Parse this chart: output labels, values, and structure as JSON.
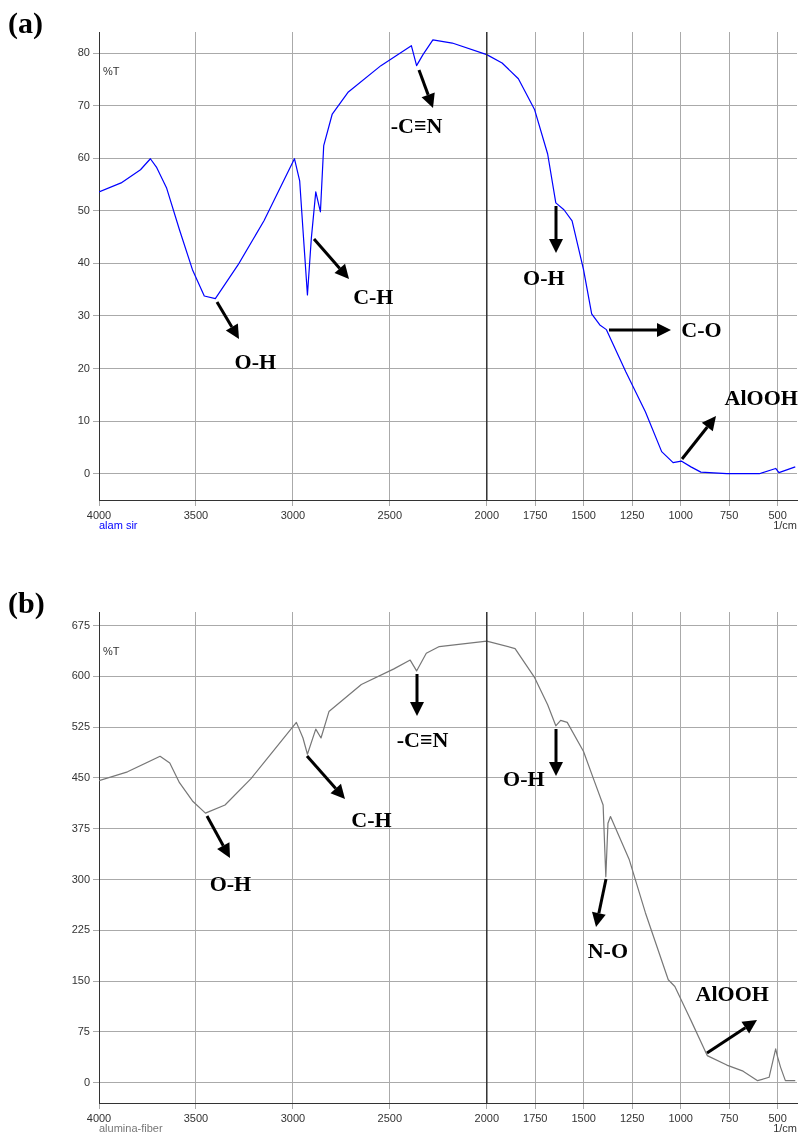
{
  "chart_data": [
    {
      "type": "line",
      "title": "(a)",
      "ylabel": "%T",
      "xlabel": "1/cm",
      "xlim": [
        4000,
        400
      ],
      "xticks": [
        4000,
        3500,
        3000,
        2500,
        2000,
        1750,
        1500,
        1250,
        1000,
        750,
        500
      ],
      "ylim": [
        -5,
        84
      ],
      "yticks": [
        0,
        10,
        20,
        30,
        40,
        50,
        60,
        70,
        80
      ],
      "grid": true,
      "ref_lines": [
        {
          "axis": "x",
          "value": 2000,
          "color": "#333333"
        }
      ],
      "series": [
        {
          "color": "#0000ff",
          "x": [
            4000,
            3886,
            3786,
            3735,
            3702,
            3652,
            3585,
            3518,
            3457,
            3400,
            3283,
            3149,
            2992,
            2965,
            2948,
            2925,
            2905,
            2882,
            2858,
            2841,
            2797,
            2714,
            2546,
            2389,
            2362,
            2329,
            2278,
            2178,
            2000,
            1921,
            1837,
            1753,
            1686,
            1644,
            1602,
            1560,
            1501,
            1459,
            1417,
            1383,
            1283,
            1182,
            1098,
            1039,
            997,
            947,
            896,
            762,
            594,
            510,
            493,
            409
          ],
          "values": [
            53.6,
            55.3,
            57.8,
            59.9,
            58.2,
            54.4,
            46.4,
            38.8,
            33.8,
            33.3,
            39.7,
            48.1,
            59.9,
            55.7,
            46.4,
            34.0,
            44.7,
            53.6,
            49.8,
            62.4,
            68.4,
            72.6,
            77.6,
            81.4,
            77.6,
            79.7,
            82.5,
            81.9,
            79.7,
            78.1,
            75.1,
            69.2,
            60.8,
            51.5,
            50.2,
            48.1,
            38.8,
            30.4,
            28.3,
            27.4,
            19.4,
            11.8,
            4.2,
            2.1,
            2.4,
            1.3,
            0.3,
            0,
            0,
            1.0,
            0.2,
            1.3
          ]
        }
      ],
      "annotations": [
        "alam sir",
        {
          "text": "O-H",
          "x": 3400,
          "y": 33.3
        },
        {
          "text": "C-H",
          "x": 2905,
          "y": 44.7
        },
        {
          "text": "-C≡N",
          "x": 2362,
          "y": 77.6
        },
        {
          "text": "O-H",
          "x": 1644,
          "y": 51.5
        },
        {
          "text": "C-O",
          "x": 1383,
          "y": 27.4
        },
        {
          "text": "AlOOH",
          "x": 997,
          "y": 2.4
        }
      ]
    },
    {
      "type": "line",
      "title": "(b)",
      "ylabel": "%T",
      "xlabel": "1/cm",
      "xlim": [
        4000,
        400
      ],
      "xticks": [
        4000,
        3500,
        3000,
        2500,
        2000,
        1750,
        1500,
        1250,
        1000,
        750,
        500
      ],
      "ylim": [
        -30,
        695
      ],
      "yticks": [
        0,
        75,
        150,
        225,
        300,
        375,
        450,
        525,
        600,
        675
      ],
      "grid": true,
      "ref_lines": [
        {
          "axis": "x",
          "value": 2000,
          "color": "#333333"
        }
      ],
      "series": [
        {
          "color": "#777777",
          "x": [
            4000,
            3853,
            3685,
            3635,
            3585,
            3518,
            3451,
            3350,
            3216,
            2982,
            2948,
            2925,
            2882,
            2855,
            2814,
            2647,
            2479,
            2395,
            2362,
            2312,
            2245,
            2000,
            1854,
            1753,
            1686,
            1644,
            1619,
            1585,
            1501,
            1450,
            1400,
            1386,
            1375,
            1362,
            1266,
            1182,
            1064,
            1030,
            947,
            863,
            762,
            678,
            603,
            544,
            510,
            502,
            485,
            460,
            409
          ],
          "values": [
            446,
            459,
            482,
            472,
            443,
            416,
            398,
            410,
            449,
            532,
            509,
            485,
            522,
            509,
            548,
            588,
            611,
            624,
            608,
            634,
            644,
            652,
            641,
            598,
            558,
            527,
            535,
            532,
            489,
            449,
            410,
            304,
            383,
            393,
            330,
            251,
            152,
            142,
            92,
            40,
            26,
            17,
            3,
            8,
            50,
            40,
            23,
            3,
            3
          ]
        }
      ],
      "annotations": [
        "alumina-fiber",
        {
          "text": "O-H",
          "x": 3451,
          "y": 398
        },
        {
          "text": "C-H",
          "x": 2925,
          "y": 485
        },
        {
          "text": "-C≡N",
          "x": 2362,
          "y": 608
        },
        {
          "text": "O-H",
          "x": 1644,
          "y": 527
        },
        {
          "text": "N-O",
          "x": 1386,
          "y": 304
        },
        {
          "text": "AlOOH",
          "x": 863,
          "y": 40
        }
      ]
    }
  ]
}
